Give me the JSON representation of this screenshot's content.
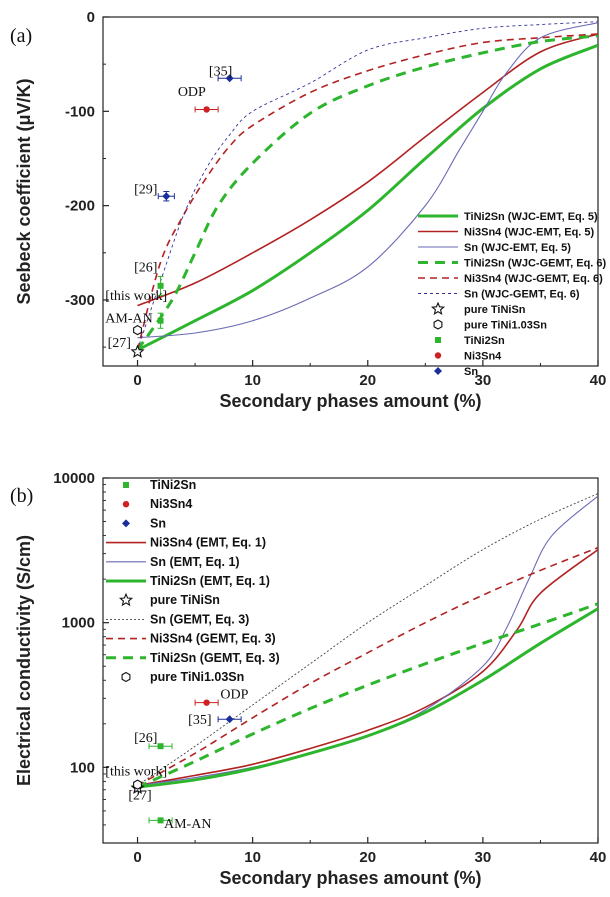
{
  "chart_data": [
    {
      "panel_label": "(a)",
      "type": "line",
      "xlabel": "Secondary phases amount (%)",
      "ylabel": "Seebeck coefficient (μV/K)",
      "xlim": [
        -3,
        40
      ],
      "ylim": [
        -370,
        0
      ],
      "xticks": [
        0,
        10,
        20,
        30,
        40
      ],
      "yticks": [
        0,
        -100,
        -200,
        -300
      ],
      "ytick_labels": [
        "0",
        "-100",
        "-200",
        "-300"
      ],
      "legend_position": "lower-right",
      "series": [
        {
          "name": "TiNi2Sn (WJC-EMT, Eq. 5)",
          "color": "#2db52d",
          "dash": "solid",
          "width": 3,
          "x": [
            0,
            5,
            10,
            15,
            20,
            25,
            30,
            35,
            40
          ],
          "y": [
            -353,
            -322,
            -290,
            -250,
            -205,
            -150,
            -97,
            -55,
            -30
          ]
        },
        {
          "name": "Ni3Sn4 (WJC-EMT, Eq. 5)",
          "color": "#b22222",
          "dash": "solid",
          "width": 1.6,
          "x": [
            0,
            5,
            10,
            15,
            20,
            25,
            30,
            35,
            40
          ],
          "y": [
            -306,
            -282,
            -250,
            -215,
            -175,
            -127,
            -80,
            -37,
            -18
          ]
        },
        {
          "name": "Sn (WJC-EMT, Eq. 5)",
          "color": "#6a6ab5",
          "dash": "solid",
          "width": 1.1,
          "x": [
            0,
            5,
            10,
            15,
            20,
            25,
            28,
            30,
            32,
            35,
            40
          ],
          "y": [
            -340,
            -335,
            -322,
            -298,
            -265,
            -200,
            -140,
            -100,
            -60,
            -22,
            -6
          ]
        },
        {
          "name": "TiNi2Sn (WJC-GEMT, Eq. 6)",
          "color": "#2db52d",
          "dash": "10 7",
          "width": 3,
          "x": [
            0,
            3,
            5,
            7,
            10,
            15,
            20,
            25,
            30,
            35,
            40
          ],
          "y": [
            -353,
            -300,
            -250,
            -200,
            -155,
            -102,
            -73,
            -53,
            -38,
            -26,
            -20
          ]
        },
        {
          "name": "Ni3Sn4 (WJC-GEMT, Eq. 6)",
          "color": "#b22222",
          "dash": "7 5",
          "width": 1.6,
          "x": [
            0,
            2,
            4,
            6,
            8,
            10,
            15,
            20,
            25,
            30,
            35,
            40
          ],
          "y": [
            -353,
            -260,
            -210,
            -170,
            -137,
            -115,
            -80,
            -57,
            -40,
            -27,
            -22,
            -18
          ]
        },
        {
          "name": "Sn (WJC-GEMT, Eq. 6)",
          "color": "#333399",
          "dash": "3 3",
          "width": 0.9,
          "x": [
            0,
            2,
            4,
            6,
            8,
            10,
            15,
            20,
            25,
            30,
            35,
            40
          ],
          "y": [
            -353,
            -280,
            -210,
            -160,
            -125,
            -100,
            -70,
            -35,
            -22,
            -12,
            -8,
            -5
          ]
        }
      ],
      "points": [
        {
          "name": "pure TiNiSn",
          "marker": "star",
          "color": "#111111",
          "x": 0,
          "y": -355
        },
        {
          "name": "pure TiNi1.03Sn",
          "marker": "hexagon",
          "color": "#111111",
          "x": 0,
          "y": -332
        },
        {
          "name": "TiNi2Sn",
          "marker": "square",
          "color": "#2db52d",
          "data": [
            {
              "x": 2,
              "y": -285,
              "xerr": 0,
              "yerr": 10
            },
            {
              "x": 2,
              "y": -322,
              "xerr": 0,
              "yerr": 8
            }
          ]
        },
        {
          "name": "Ni3Sn4",
          "marker": "circle",
          "color": "#cc2222",
          "data": [
            {
              "x": 6,
              "y": -98,
              "xerr": 1.0,
              "yerr": 0
            }
          ]
        },
        {
          "name": "Sn",
          "marker": "diamond",
          "color": "#1a2f99",
          "data": [
            {
              "x": 8,
              "y": -65,
              "xerr": 1.0,
              "yerr": 0
            },
            {
              "x": 2.5,
              "y": -190,
              "xerr": 0.7,
              "yerr": 5
            }
          ]
        }
      ],
      "annotations": [
        {
          "text": "[35]",
          "x": 6.2,
          "y": -62
        },
        {
          "text": "ODP",
          "x": 3.5,
          "y": -84
        },
        {
          "text": "[29]",
          "x": -0.3,
          "y": -187
        },
        {
          "text": "[26]",
          "x": -0.3,
          "y": -270
        },
        {
          "text": "[this work]",
          "x": -2.8,
          "y": -300
        },
        {
          "text": "AM-AN",
          "x": -2.8,
          "y": -324
        },
        {
          "text": "[27]",
          "x": -2.6,
          "y": -350
        }
      ]
    },
    {
      "panel_label": "(b)",
      "type": "line",
      "scale_y": "log",
      "xlabel": "Secondary phases amount (%)",
      "ylabel": "Electrical conductivity (S/cm)",
      "xlim": [
        -3,
        40
      ],
      "ylim": [
        30,
        10000
      ],
      "xticks": [
        0,
        10,
        20,
        30,
        40
      ],
      "yticks": [
        100,
        1000,
        10000
      ],
      "ytick_labels": [
        "100",
        "1000",
        "10000"
      ],
      "legend_position": "upper-left",
      "series": [
        {
          "name": "Ni3Sn4 (EMT, Eq. 1)",
          "color": "#b22222",
          "dash": "solid",
          "width": 1.6,
          "x": [
            0,
            5,
            10,
            15,
            20,
            25,
            30,
            33,
            35,
            40
          ],
          "y": [
            75,
            88,
            105,
            135,
            180,
            260,
            460,
            900,
            1600,
            3200
          ]
        },
        {
          "name": "Sn (EMT, Eq. 1)",
          "color": "#6a6ab5",
          "dash": "solid",
          "width": 1.1,
          "x": [
            0,
            5,
            10,
            15,
            20,
            25,
            30,
            32,
            34,
            36,
            40
          ],
          "y": [
            75,
            85,
            100,
            125,
            165,
            250,
            500,
            900,
            2000,
            4000,
            7500
          ]
        },
        {
          "name": "TiNi2Sn (EMT, Eq. 1)",
          "color": "#2db52d",
          "dash": "solid",
          "width": 3,
          "x": [
            0,
            5,
            10,
            15,
            20,
            25,
            30,
            35,
            40
          ],
          "y": [
            73,
            82,
            98,
            125,
            165,
            240,
            400,
            720,
            1250
          ]
        },
        {
          "name": "Sn (GEMT, Eq. 3)",
          "color": "#444444",
          "dash": "2 2",
          "width": 0.9,
          "x": [
            0,
            5,
            10,
            15,
            20,
            25,
            30,
            35,
            40
          ],
          "y": [
            75,
            140,
            270,
            520,
            1000,
            1800,
            3200,
            5200,
            7800
          ]
        },
        {
          "name": "Ni3Sn4 (GEMT, Eq. 3)",
          "color": "#b22222",
          "dash": "7 5",
          "width": 1.6,
          "x": [
            0,
            5,
            10,
            15,
            20,
            25,
            30,
            35,
            40
          ],
          "y": [
            75,
            125,
            220,
            380,
            620,
            1000,
            1550,
            2300,
            3300
          ]
        },
        {
          "name": "TiNi2Sn (GEMT, Eq. 3)",
          "color": "#2db52d",
          "dash": "10 7",
          "width": 3,
          "x": [
            0,
            5,
            10,
            15,
            20,
            25,
            30,
            35,
            40
          ],
          "y": [
            73,
            110,
            170,
            255,
            370,
            520,
            720,
            980,
            1350
          ]
        }
      ],
      "points": [
        {
          "name": "TiNi2Sn",
          "marker": "square",
          "color": "#2db52d",
          "data": [
            {
              "x": 2,
              "y": 140,
              "xerr": 1.0
            },
            {
              "x": 2,
              "y": 43,
              "xerr": 1.0
            }
          ]
        },
        {
          "name": "Ni3Sn4",
          "marker": "circle",
          "color": "#cc2222",
          "data": [
            {
              "x": 6,
              "y": 280,
              "xerr": 1.0
            }
          ]
        },
        {
          "name": "Sn",
          "marker": "diamond",
          "color": "#1a2f99",
          "data": [
            {
              "x": 8,
              "y": 215,
              "xerr": 1.0
            }
          ]
        },
        {
          "name": "pure TiNiSn",
          "marker": "star",
          "color": "#111111",
          "x": 0,
          "y": 72
        },
        {
          "name": "pure TiNi1.03Sn",
          "marker": "hexagon",
          "color": "#111111",
          "x": 0,
          "y": 76
        }
      ],
      "annotations": [
        {
          "text": "ODP",
          "x": 7.2,
          "y": 300
        },
        {
          "text": "[35]",
          "x": 4.4,
          "y": 200
        },
        {
          "text": "[26]",
          "x": -0.3,
          "y": 150
        },
        {
          "text": "[this work]",
          "x": -2.8,
          "y": 88
        },
        {
          "text": "[27]",
          "x": -0.8,
          "y": 60
        },
        {
          "text": "AM-AN",
          "x": 2.3,
          "y": 38
        }
      ]
    }
  ]
}
